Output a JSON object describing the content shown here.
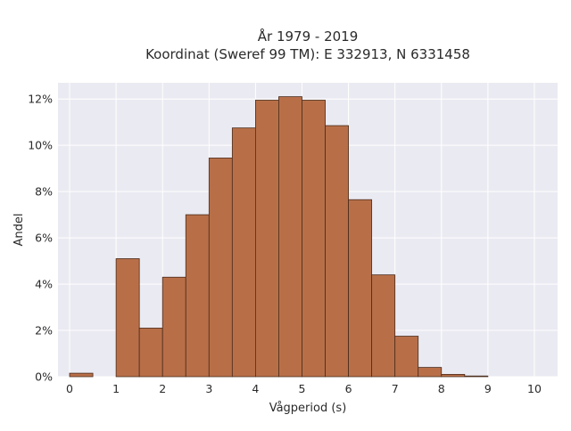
{
  "chart_data": {
    "type": "bar",
    "title": [
      "År 1979 - 2019",
      "Koordinat (Sweref 99 TM): E 332913, N 6331458"
    ],
    "xlabel": "Vågperiod (s)",
    "ylabel": "Andel",
    "bin_width": 0.5,
    "bins": [
      {
        "x0": 0.0,
        "value": 0.15
      },
      {
        "x0": 0.5,
        "value": 0.0
      },
      {
        "x0": 1.0,
        "value": 5.1
      },
      {
        "x0": 1.5,
        "value": 2.1
      },
      {
        "x0": 2.0,
        "value": 4.3
      },
      {
        "x0": 2.5,
        "value": 7.0
      },
      {
        "x0": 3.0,
        "value": 9.45
      },
      {
        "x0": 3.5,
        "value": 10.75
      },
      {
        "x0": 4.0,
        "value": 11.95
      },
      {
        "x0": 4.5,
        "value": 12.1
      },
      {
        "x0": 5.0,
        "value": 11.95
      },
      {
        "x0": 5.5,
        "value": 10.85
      },
      {
        "x0": 6.0,
        "value": 7.65
      },
      {
        "x0": 6.5,
        "value": 4.4
      },
      {
        "x0": 7.0,
        "value": 1.75
      },
      {
        "x0": 7.5,
        "value": 0.4
      },
      {
        "x0": 8.0,
        "value": 0.1
      },
      {
        "x0": 8.5,
        "value": 0.03
      }
    ],
    "xlim": [
      -0.25,
      10.5
    ],
    "ylim": [
      0,
      12.7
    ],
    "xticks": [
      0,
      1,
      2,
      3,
      4,
      5,
      6,
      7,
      8,
      9,
      10
    ],
    "yticks": [
      0,
      2,
      4,
      6,
      8,
      10,
      12
    ],
    "ytick_labels": [
      "0%",
      "2%",
      "4%",
      "6%",
      "8%",
      "10%",
      "12%"
    ],
    "grid": true,
    "colors": {
      "bar_fill": "#b86f48",
      "bar_edge": "#4a2c1c",
      "plot_bg": "#eaeaf2",
      "grid": "#ffffff"
    }
  }
}
